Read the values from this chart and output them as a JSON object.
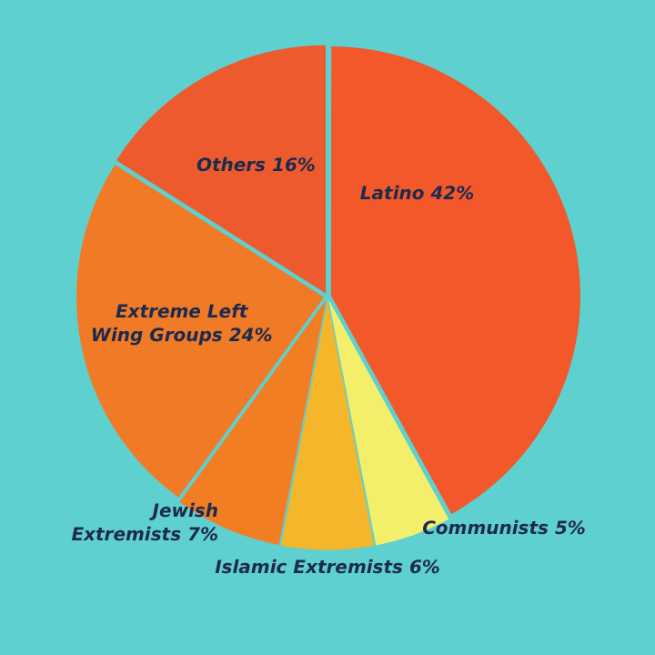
{
  "chart_data": {
    "type": "pie",
    "categories": [
      "Latino",
      "Communists",
      "Islamic Extremists",
      "Jewish Extremists",
      "Extreme Left Wing Groups",
      "Others"
    ],
    "values": [
      42,
      5,
      6,
      7,
      24,
      16
    ],
    "value_labels": [
      "42%",
      "5%",
      "6%",
      "7%",
      "24%",
      "16%"
    ],
    "colors": [
      "#f2582a",
      "#f3ef6a",
      "#f4b62a",
      "#f27e24",
      "#f07a26",
      "#ec5a2e"
    ],
    "legend": false
  }
}
